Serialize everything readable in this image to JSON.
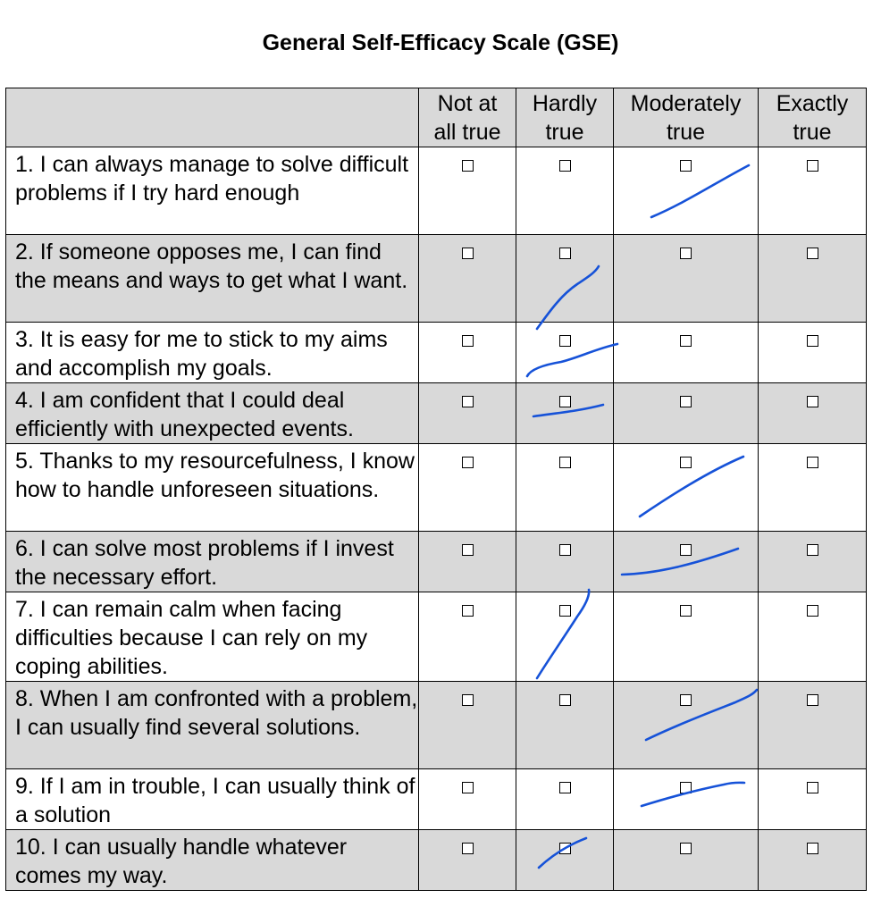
{
  "title": "General Self-Efficacy Scale (GSE)",
  "columns": [
    {
      "line1": "Not at",
      "line2": "all true"
    },
    {
      "line1": "Hardly",
      "line2": "true"
    },
    {
      "line1": "Moderately",
      "line2": "true"
    },
    {
      "line1": "Exactly",
      "line2": "true"
    }
  ],
  "items": [
    {
      "text": "1. I can always manage to solve difficult problems if I try hard enough",
      "marked": "Moderately true"
    },
    {
      "text": "2. If someone opposes me, I can find the means and ways to get what I want.",
      "marked": "Hardly true"
    },
    {
      "text": "3. It is easy for me to stick to my aims and accomplish my goals.",
      "marked": "Hardly true"
    },
    {
      "text": "4. I am confident that I could deal efficiently with unexpected events.",
      "marked": "Hardly true"
    },
    {
      "text": "5. Thanks to my resourcefulness, I know how to handle unforeseen situations.",
      "marked": "Moderately true"
    },
    {
      "text": "6. I can solve most problems if I invest the necessary effort.",
      "marked": "Moderately true"
    },
    {
      "text": "7. I can remain calm when facing difficulties because I can rely on my coping abilities.",
      "marked": "Hardly true"
    },
    {
      "text": "8. When I am confronted with a problem, I can usually find several solutions.",
      "marked": "Moderately true"
    },
    {
      "text": "9. If I am in trouble, I can usually think of a solution",
      "marked": "Moderately true"
    },
    {
      "text": "10. I can usually handle whatever comes my way.",
      "marked": "Hardly true"
    }
  ],
  "ink_color": "#1652d8"
}
